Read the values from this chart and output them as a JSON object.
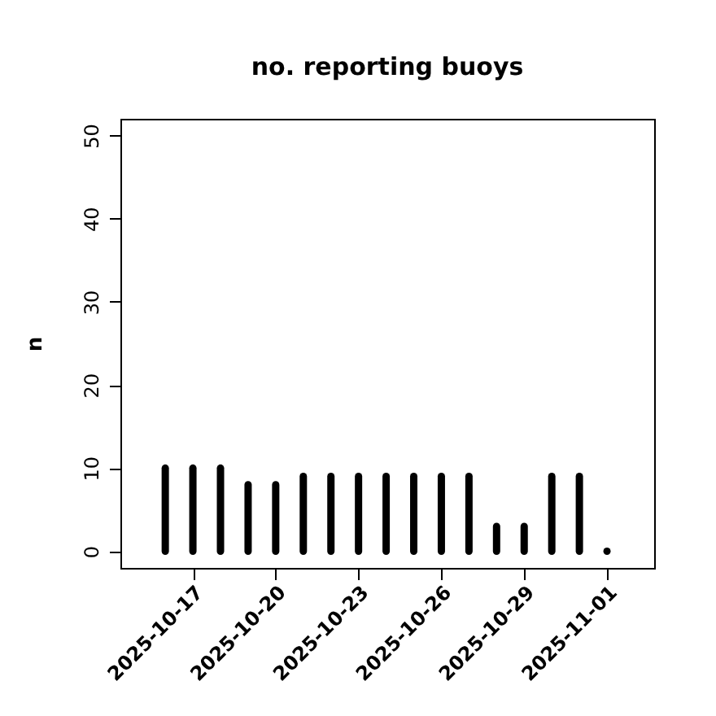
{
  "chart_data": {
    "type": "bar",
    "title": "no. reporting buoys",
    "ylabel": "n",
    "x": [
      "2025-10-16",
      "2025-10-17",
      "2025-10-18",
      "2025-10-19",
      "2025-10-20",
      "2025-10-21",
      "2025-10-22",
      "2025-10-23",
      "2025-10-24",
      "2025-10-25",
      "2025-10-26",
      "2025-10-27",
      "2025-10-28",
      "2025-10-29",
      "2025-10-30",
      "2025-10-31",
      "2025-11-01"
    ],
    "values": [
      10,
      10,
      10,
      8,
      8,
      9,
      9,
      9,
      9,
      9,
      9,
      9,
      3,
      3,
      9,
      9,
      0
    ],
    "color": "#000000",
    "xlim": [
      "2025-10-14T09:00",
      "2025-11-02T17:00"
    ],
    "xticks": [
      "2025-10-17",
      "2025-10-20",
      "2025-10-23",
      "2025-10-26",
      "2025-10-29",
      "2025-11-01"
    ],
    "ylim": [
      -2,
      52
    ],
    "yticks": [
      0,
      10,
      20,
      30,
      40,
      50
    ]
  }
}
